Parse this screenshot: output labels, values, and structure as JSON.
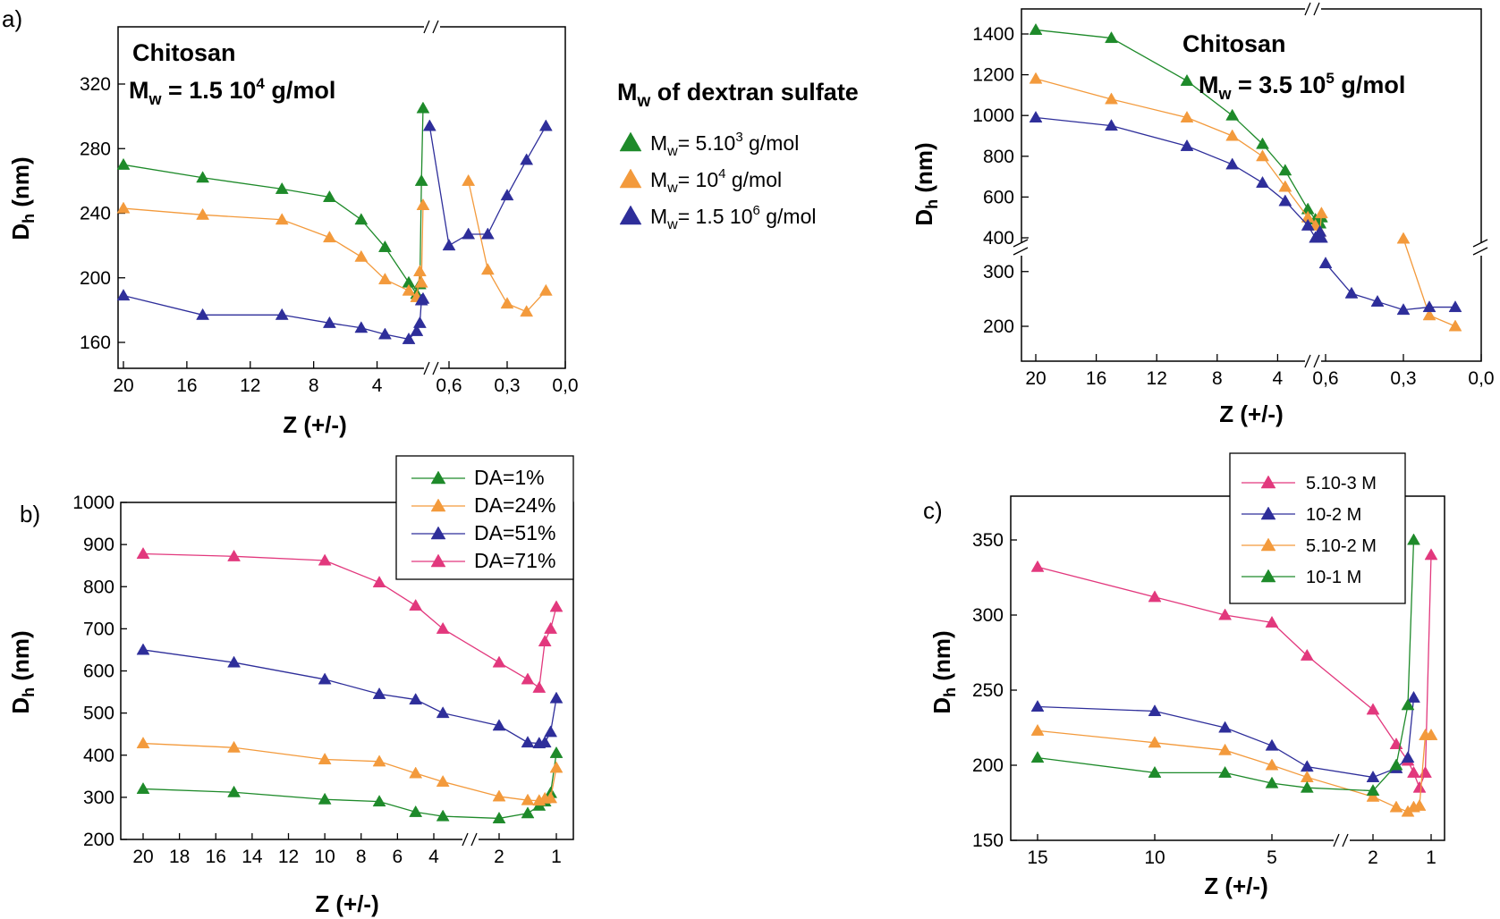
{
  "figure": {
    "panel_labels": {
      "a": "a)",
      "b": "b)",
      "c": "c)"
    },
    "legend_a": {
      "title_main": "M",
      "title_sub": "w",
      "title_rest": " of dextran sulfate",
      "entries": [
        {
          "pre": "M",
          "sub": "w",
          "mid": "= 5.10",
          "sup": "3",
          "post": " g/mol",
          "color": "#1e8a2a"
        },
        {
          "pre": "M",
          "sub": "w",
          "mid": "= 10",
          "sup": "4",
          "post": " g/mol",
          "color": "#f39a3c"
        },
        {
          "pre": "M",
          "sub": "w",
          "mid": "= 1.5 10",
          "sup": "6",
          "post": " g/mol",
          "color": "#2e2e9a"
        }
      ]
    },
    "annotations": {
      "a1_line1": "Chitosan",
      "a1_line2_pre": "M",
      "a1_line2_sub": "w",
      "a1_line2_mid": " = 1.5 10",
      "a1_line2_sup": "4",
      "a1_line2_post": " g/mol",
      "a2_line1": "Chitosan",
      "a2_line2_pre": "M",
      "a2_line2_sub": "w",
      "a2_line2_mid": " = 3.5 10",
      "a2_line2_sup": "5",
      "a2_line2_post": " g/mol"
    },
    "axis_titles": {
      "x": "Z (+/-)",
      "y_main": "D",
      "y_sub": "h",
      "y_unit": " (nm)"
    }
  },
  "chart_data": [
    {
      "id": "a1",
      "type": "line",
      "xlabel": "Z (+/-)",
      "ylabel": "Dh (nm)",
      "y_ticks": [
        "160",
        "200",
        "240",
        "280",
        "320"
      ],
      "x_ticks_left": [
        "20",
        "16",
        "12",
        "8",
        "4"
      ],
      "x_ticks_right": [
        "0,6",
        "0,3",
        "0,0"
      ],
      "ylim": [
        150,
        320
      ],
      "series": [
        {
          "name": "5.10^3 g/mol",
          "color": "#1e8a2a",
          "left_x": [
            20,
            15,
            10,
            7,
            5,
            3.5,
            2,
            1.5,
            1.3,
            1.2,
            1.1
          ],
          "left_y": [
            270,
            262,
            255,
            250,
            236,
            219,
            197,
            190,
            196,
            260,
            305
          ],
          "right_x": [],
          "right_y": []
        },
        {
          "name": "10^4 g/mol",
          "color": "#f39a3c",
          "left_x": [
            20,
            15,
            10,
            7,
            5,
            3.5,
            2,
            1.5,
            1.3,
            1.2,
            1.1
          ],
          "left_y": [
            243,
            239,
            236,
            225,
            213,
            199,
            192,
            188,
            204,
            197,
            245
          ],
          "right_x": [
            0.5,
            0.4,
            0.3,
            0.2,
            0.1
          ],
          "right_y": [
            260,
            205,
            184,
            179,
            192
          ]
        },
        {
          "name": "1.5 10^6 g/mol",
          "color": "#2e2e9a",
          "left_x": [
            20,
            15,
            10,
            7,
            5,
            3.5,
            2,
            1.5,
            1.3,
            1.2,
            1.1
          ],
          "left_y": [
            189,
            177,
            177,
            172,
            169,
            165,
            162,
            167,
            172,
            186,
            187
          ],
          "right_x": [
            0.7,
            0.6,
            0.5,
            0.4,
            0.3,
            0.2,
            0.1
          ],
          "right_y": [
            294,
            220,
            227,
            227,
            251,
            273,
            294
          ]
        }
      ]
    },
    {
      "id": "a2",
      "type": "line",
      "xlabel": "Z (+/-)",
      "ylabel": "Dh (nm)",
      "y_ticks_top": [
        "400",
        "600",
        "800",
        "1000",
        "1200",
        "1400"
      ],
      "y_ticks_bottom": [
        "200",
        "300"
      ],
      "x_ticks_left": [
        "20",
        "16",
        "12",
        "8",
        "4"
      ],
      "x_ticks_right": [
        "0,6",
        "0,3",
        "0,0"
      ],
      "series": [
        {
          "name": "5.10^3 g/mol",
          "color": "#1e8a2a",
          "left_x": [
            20,
            15,
            10,
            7,
            5,
            3.5,
            2,
            1.5,
            1.2,
            1.1
          ],
          "left_y": [
            1420,
            1380,
            1170,
            1000,
            860,
            730,
            540,
            490,
            470,
            500
          ],
          "right_x": [],
          "right_y": []
        },
        {
          "name": "10^4 g/mol",
          "color": "#f39a3c",
          "left_x": [
            20,
            15,
            10,
            7,
            5,
            3.5,
            2,
            1.5,
            1.2,
            1.1
          ],
          "left_y": [
            1180,
            1080,
            990,
            900,
            800,
            650,
            500,
            460,
            430,
            520
          ],
          "right_x": [
            0.3,
            0.2,
            0.1
          ],
          "right_y": [
            360,
            220,
            200
          ]
        },
        {
          "name": "1.5 10^6 g/mol",
          "color": "#2e2e9a",
          "left_x": [
            20,
            15,
            10,
            7,
            5,
            3.5,
            2,
            1.5,
            1.3,
            1.2,
            1.1
          ],
          "left_y": [
            990,
            950,
            850,
            760,
            670,
            580,
            460,
            400,
            400,
            430,
            400
          ],
          "right_x": [
            0.6,
            0.5,
            0.4,
            0.3,
            0.2,
            0.1
          ],
          "right_y": [
            315,
            260,
            245,
            230,
            235,
            235
          ]
        }
      ]
    },
    {
      "id": "b",
      "type": "line",
      "xlabel": "Z (+/-)",
      "ylabel": "Dh (nm)",
      "y_ticks": [
        "200",
        "300",
        "400",
        "500",
        "600",
        "700",
        "800",
        "900",
        "1000"
      ],
      "x_ticks_left": [
        "20",
        "18",
        "16",
        "14",
        "12",
        "10",
        "8",
        "6",
        "4"
      ],
      "x_ticks_right": [
        "2",
        "1"
      ],
      "ylim": [
        200,
        1000
      ],
      "legend": [
        "DA=1%",
        "DA=24%",
        "DA=51%",
        "DA=71%"
      ],
      "series": [
        {
          "name": "DA=1%",
          "color": "#1e8a2a",
          "x": [
            20,
            15,
            10,
            7,
            5,
            3.5,
            2,
            1.5,
            1.3,
            1.2,
            1.1,
            1
          ],
          "y": [
            320,
            312,
            295,
            290,
            265,
            255,
            250,
            262,
            280,
            290,
            310,
            405
          ]
        },
        {
          "name": "DA=24%",
          "color": "#f39a3c",
          "x": [
            20,
            15,
            10,
            7,
            5,
            3.5,
            2,
            1.5,
            1.3,
            1.2,
            1.1,
            1
          ],
          "y": [
            428,
            418,
            390,
            385,
            357,
            337,
            302,
            293,
            292,
            297,
            298,
            370
          ]
        },
        {
          "name": "DA=51%",
          "color": "#2e2e9a",
          "x": [
            20,
            15,
            10,
            7,
            5,
            3.5,
            2,
            1.5,
            1.3,
            1.2,
            1.1,
            1
          ],
          "y": [
            650,
            620,
            580,
            545,
            532,
            500,
            470,
            430,
            428,
            430,
            455,
            535
          ]
        },
        {
          "name": "DA=71%",
          "color": "#e2387d",
          "x": [
            20,
            15,
            10,
            7,
            5,
            3.5,
            2,
            1.5,
            1.3,
            1.2,
            1.1,
            1
          ],
          "y": [
            878,
            872,
            862,
            810,
            755,
            700,
            620,
            580,
            560,
            670,
            700,
            752
          ]
        }
      ]
    },
    {
      "id": "c",
      "type": "line",
      "xlabel": "Z (+/-)",
      "ylabel": "Dh (nm)",
      "y_ticks": [
        "150",
        "200",
        "250",
        "300",
        "350"
      ],
      "x_ticks_left": [
        "15",
        "10",
        "5"
      ],
      "x_ticks_right": [
        "2",
        "1"
      ],
      "ylim": [
        150,
        370
      ],
      "legend": [
        "5.10-3 M",
        "10-2 M",
        "5.10-2 M",
        "10-1 M"
      ],
      "series": [
        {
          "name": "5.10-3 M",
          "color": "#e2387d",
          "x": [
            15,
            10,
            7,
            5,
            3.5,
            2,
            1.6,
            1.4,
            1.3,
            1.2,
            1.1,
            1
          ],
          "y": [
            332,
            312,
            300,
            295,
            273,
            237,
            214,
            203,
            195,
            185,
            195,
            340
          ]
        },
        {
          "name": "10-2 M",
          "color": "#2e2e9a",
          "x": [
            15,
            10,
            7,
            5,
            3.5,
            2,
            1.6,
            1.4,
            1.3
          ],
          "y": [
            239,
            236,
            225,
            213,
            199,
            192,
            198,
            205,
            245
          ]
        },
        {
          "name": "5.10-2 M",
          "color": "#f39a3c",
          "x": [
            15,
            10,
            7,
            5,
            3.5,
            2,
            1.6,
            1.4,
            1.3,
            1.2,
            1.1,
            1
          ],
          "y": [
            223,
            215,
            210,
            200,
            192,
            179,
            172,
            169,
            172,
            173,
            220,
            220
          ]
        },
        {
          "name": "10-1 M",
          "color": "#1e8a2a",
          "x": [
            15,
            10,
            7,
            5,
            3.5,
            2,
            1.6,
            1.4,
            1.3
          ],
          "y": [
            205,
            195,
            195,
            188,
            185,
            183,
            200,
            240,
            350
          ]
        }
      ]
    }
  ]
}
